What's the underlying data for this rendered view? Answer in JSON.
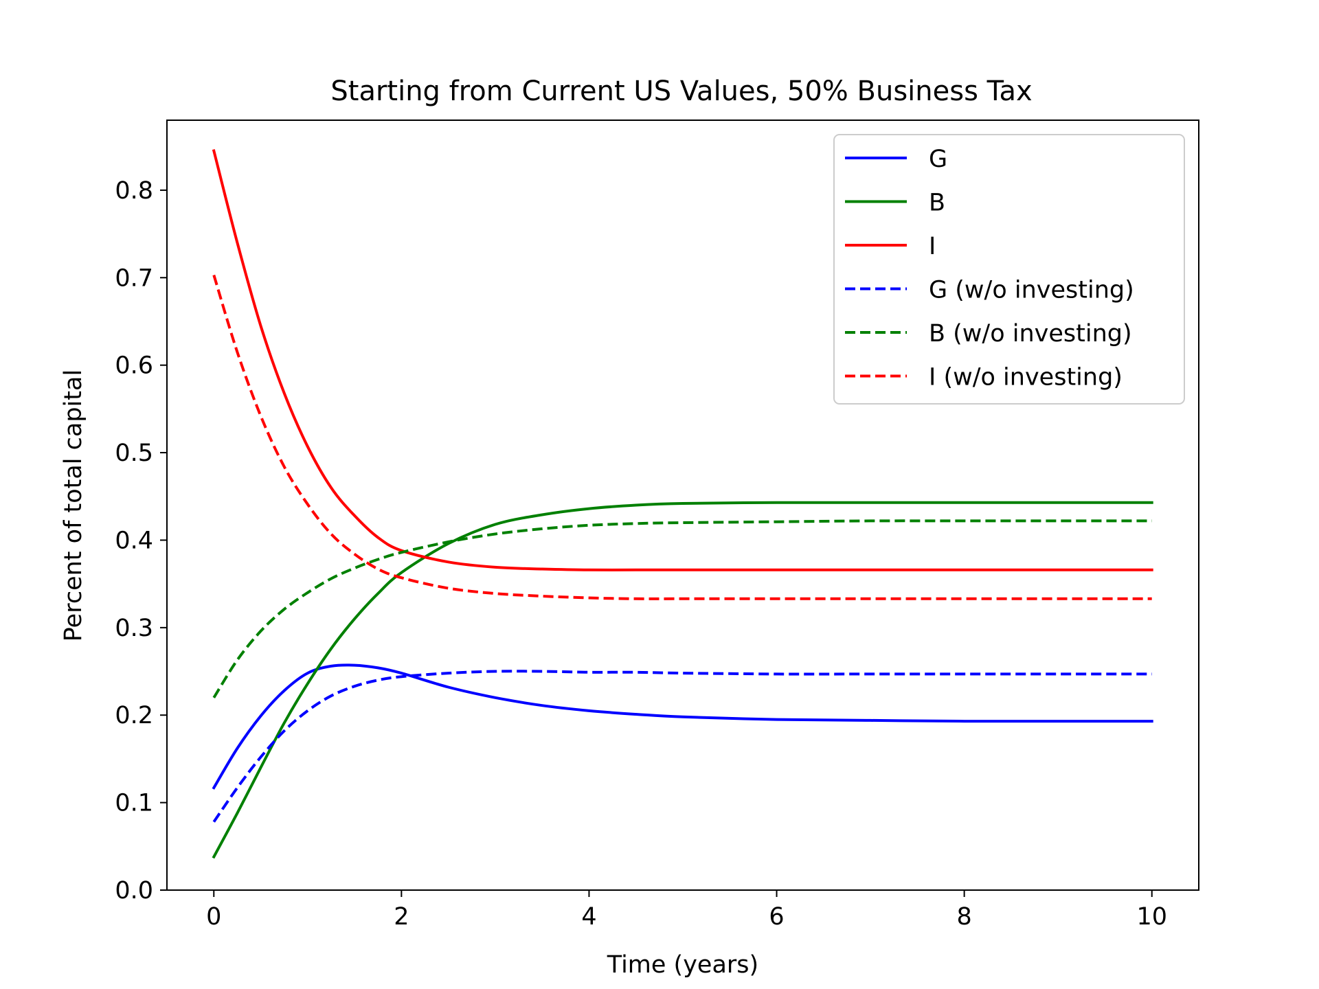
{
  "chart_data": {
    "type": "line",
    "title": "Starting from Current US Values, 50% Business Tax",
    "xlabel": "Time (years)",
    "ylabel": "Percent of total capital",
    "xlim": [
      -0.5,
      10.5
    ],
    "ylim": [
      0.0,
      0.88
    ],
    "xticks": [
      0,
      2,
      4,
      6,
      8,
      10
    ],
    "xtick_labels": [
      "0",
      "2",
      "4",
      "6",
      "8",
      "10"
    ],
    "yticks": [
      0.0,
      0.1,
      0.2,
      0.3,
      0.4,
      0.5,
      0.6,
      0.7,
      0.8
    ],
    "ytick_labels": [
      "0.0",
      "0.1",
      "0.2",
      "0.3",
      "0.4",
      "0.5",
      "0.6",
      "0.7",
      "0.8"
    ],
    "grid": false,
    "legend_position": "top-right",
    "series": [
      {
        "name": "G",
        "color": "#0000ff",
        "style": "solid",
        "x": [
          0,
          0.25,
          0.5,
          0.75,
          1,
          1.25,
          1.5,
          1.75,
          2,
          2.5,
          3,
          3.5,
          4,
          4.5,
          5,
          6,
          7,
          8,
          9,
          10
        ],
        "y": [
          0.117,
          0.162,
          0.199,
          0.228,
          0.248,
          0.256,
          0.257,
          0.254,
          0.248,
          0.232,
          0.22,
          0.211,
          0.205,
          0.201,
          0.198,
          0.195,
          0.194,
          0.193,
          0.193,
          0.193
        ]
      },
      {
        "name": "B",
        "color": "#008000",
        "style": "solid",
        "x": [
          0,
          0.25,
          0.5,
          0.75,
          1,
          1.25,
          1.5,
          1.75,
          2,
          2.5,
          3,
          3.5,
          4,
          4.5,
          5,
          6,
          7,
          8,
          9,
          10
        ],
        "y": [
          0.038,
          0.088,
          0.14,
          0.191,
          0.236,
          0.276,
          0.31,
          0.339,
          0.363,
          0.396,
          0.418,
          0.429,
          0.436,
          0.44,
          0.442,
          0.443,
          0.443,
          0.443,
          0.443,
          0.443
        ]
      },
      {
        "name": "I",
        "color": "#ff0000",
        "style": "solid",
        "x": [
          0,
          0.25,
          0.5,
          0.75,
          1,
          1.25,
          1.5,
          1.75,
          2,
          2.5,
          3,
          3.5,
          4,
          4.5,
          5,
          6,
          7,
          8,
          9,
          10
        ],
        "y": [
          0.845,
          0.74,
          0.645,
          0.568,
          0.507,
          0.46,
          0.428,
          0.403,
          0.388,
          0.375,
          0.369,
          0.367,
          0.366,
          0.366,
          0.366,
          0.366,
          0.366,
          0.366,
          0.366,
          0.366
        ]
      },
      {
        "name": "G (w/o investing)",
        "color": "#0000ff",
        "style": "dashed",
        "x": [
          0,
          0.25,
          0.5,
          0.75,
          1,
          1.25,
          1.5,
          1.75,
          2,
          2.5,
          3,
          3.5,
          4,
          4.5,
          5,
          6,
          7,
          8,
          9,
          10
        ],
        "y": [
          0.078,
          0.117,
          0.152,
          0.182,
          0.205,
          0.222,
          0.233,
          0.24,
          0.244,
          0.248,
          0.25,
          0.25,
          0.249,
          0.249,
          0.248,
          0.247,
          0.247,
          0.247,
          0.247,
          0.247
        ]
      },
      {
        "name": "B (w/o investing)",
        "color": "#008000",
        "style": "dashed",
        "x": [
          0,
          0.25,
          0.5,
          0.75,
          1,
          1.25,
          1.5,
          1.75,
          2,
          2.5,
          3,
          3.5,
          4,
          4.5,
          5,
          6,
          7,
          8,
          9,
          10
        ],
        "y": [
          0.22,
          0.263,
          0.296,
          0.321,
          0.34,
          0.356,
          0.368,
          0.378,
          0.386,
          0.398,
          0.407,
          0.413,
          0.417,
          0.419,
          0.42,
          0.421,
          0.422,
          0.422,
          0.422,
          0.422
        ]
      },
      {
        "name": "I (w/o investing)",
        "color": "#ff0000",
        "style": "dashed",
        "x": [
          0,
          0.25,
          0.5,
          0.75,
          1,
          1.25,
          1.5,
          1.75,
          2,
          2.5,
          3,
          3.5,
          4,
          4.5,
          5,
          6,
          7,
          8,
          9,
          10
        ],
        "y": [
          0.703,
          0.615,
          0.542,
          0.484,
          0.441,
          0.407,
          0.384,
          0.367,
          0.357,
          0.345,
          0.339,
          0.336,
          0.334,
          0.333,
          0.333,
          0.333,
          0.333,
          0.333,
          0.333,
          0.333
        ]
      }
    ]
  }
}
